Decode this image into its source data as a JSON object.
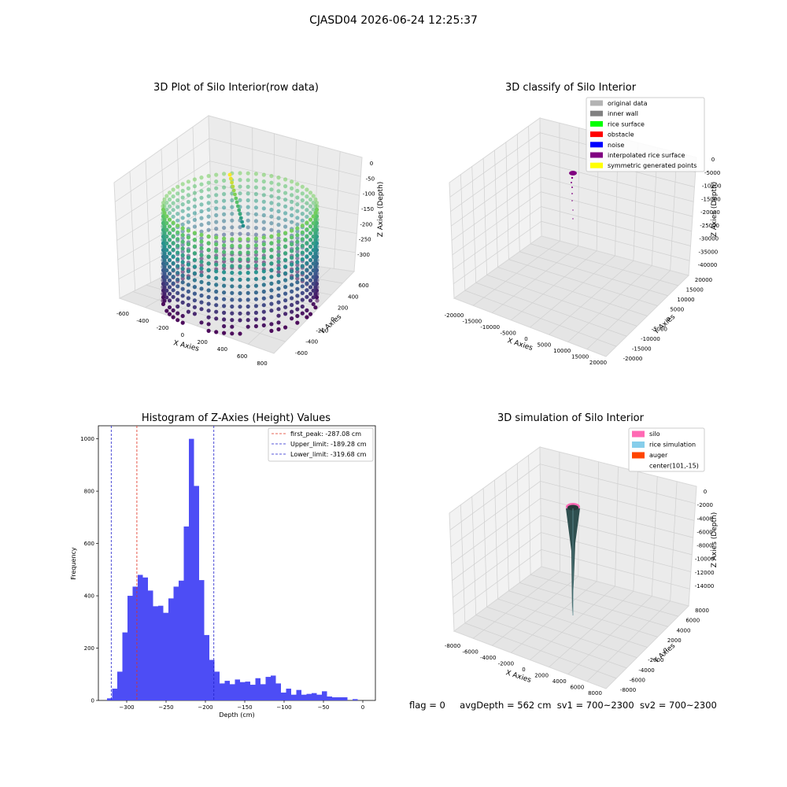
{
  "figure": {
    "suptitle": "CJASD04 2026-06-24 12:25:37",
    "footer": {
      "flag": "flag = 0",
      "avg_depth": "avgDepth = 562 cm",
      "sv1": "sv1 = 700~2300",
      "sv2": "sv2 = 700~2300"
    }
  },
  "colors": {
    "histogram_bar": "#4d4df5",
    "first_peak_line": "#e0301e",
    "limit_line": "#2020cc",
    "silo": "#ff69b4",
    "rice_simulation": "#87ceeb",
    "auger": "#ff4500",
    "original_data": "#b3b3b3",
    "inner_wall": "#808080",
    "rice_surface": "#00ff00",
    "obstacle": "#ff0000",
    "noise": "#0000ff",
    "interpolated_rice_surface": "#800080",
    "symmetric_generated_points": "#ffff00"
  },
  "chart_data": [
    {
      "type": "scatter",
      "title": "3D Plot of Silo Interior(row data)",
      "xlabel": "X Axies",
      "ylabel": "Y Axies",
      "zlabel": "Z Axies (Depth)",
      "x_ticks": [
        "-600",
        "-400",
        "-200",
        "0",
        "200",
        "400",
        "600",
        "800"
      ],
      "y_ticks": [
        "-600",
        "-400",
        "-200",
        "0",
        "200",
        "400",
        "600"
      ],
      "z_ticks": [
        "0",
        "-50",
        "-100",
        "-150",
        "-200",
        "-250",
        "-300"
      ],
      "xlim": [
        -650,
        800
      ],
      "ylim": [
        -650,
        650
      ],
      "zlim": [
        -330,
        0
      ],
      "colormap": "viridis",
      "description_points": "cylindrical wall of points, radius ~550, depths from -330 to 0"
    },
    {
      "type": "scatter",
      "title": "3D classify of Silo Interior",
      "xlabel": "X Axies",
      "ylabel": "Y Axies",
      "zlabel": "Z Axies (Depth)",
      "x_ticks": [
        "-20000",
        "-15000",
        "-10000",
        "-5000",
        "0",
        "5000",
        "10000",
        "15000",
        "20000"
      ],
      "y_ticks": [
        "-20000",
        "-15000",
        "-10000",
        "-5000",
        "0",
        "5000",
        "10000",
        "15000",
        "20000"
      ],
      "z_ticks": [
        "0",
        "-5000",
        "-10000",
        "-15000",
        "-20000",
        "-25000",
        "-30000",
        "-35000",
        "-40000"
      ],
      "xlim": [
        -20000,
        20000
      ],
      "ylim": [
        -20000,
        20000
      ],
      "zlim": [
        -40000,
        0
      ],
      "legend": [
        "original data",
        "inner wall",
        "rice surface",
        "obstacle",
        "noise",
        "interpolated rice surface",
        "symmetric generated points"
      ],
      "legend_location": "top-right"
    },
    {
      "type": "bar",
      "title": "Histogram of Z-Axies (Height) Values",
      "xlabel": "Depth (cm)",
      "ylabel": "Frequency",
      "x_ticks": [
        "-300",
        "-250",
        "-200",
        "-150",
        "-100",
        "-50",
        "0"
      ],
      "y_ticks": [
        "0",
        "200",
        "400",
        "600",
        "800",
        "1000"
      ],
      "xlim": [
        -336,
        16
      ],
      "ylim": [
        0,
        1050
      ],
      "bin_start": -325,
      "bin_width": 6.5,
      "values": [
        8,
        45,
        110,
        260,
        400,
        435,
        480,
        470,
        420,
        360,
        362,
        335,
        390,
        435,
        458,
        665,
        1000,
        820,
        460,
        250,
        155,
        110,
        65,
        75,
        62,
        80,
        70,
        72,
        60,
        85,
        62,
        90,
        95,
        65,
        30,
        45,
        22,
        40,
        22,
        25,
        28,
        22,
        35,
        15,
        12,
        12,
        12,
        0,
        5
      ],
      "vlines": [
        {
          "x": -287.08,
          "style": "first_peak"
        },
        {
          "x": -189.28,
          "style": "limit"
        },
        {
          "x": -319.68,
          "style": "limit"
        }
      ],
      "legend": [
        "first_peak: -287.08 cm",
        "Upper_limit: -189.28 cm",
        "Lower_limit: -319.68 cm"
      ],
      "legend_location": "top-right"
    },
    {
      "type": "area",
      "title": "3D simulation of Silo Interior",
      "xlabel": "X Axies",
      "ylabel": "Y Axies",
      "zlabel": "Z Axies (Depth)",
      "x_ticks": [
        "-8000",
        "-6000",
        "-4000",
        "-2000",
        "0",
        "2000",
        "4000",
        "6000",
        "8000"
      ],
      "y_ticks": [
        "-8000",
        "-6000",
        "-4000",
        "-2000",
        "0",
        "2000",
        "4000",
        "6000",
        "8000"
      ],
      "z_ticks": [
        "0",
        "-2000",
        "-4000",
        "-6000",
        "-8000",
        "-10000",
        "-12000",
        "-14000"
      ],
      "xlim": [
        -8000,
        8000
      ],
      "ylim": [
        -8000,
        8000
      ],
      "zlim": [
        -15000,
        0
      ],
      "legend": [
        "silo",
        "rice simulation",
        "auger",
        "center(101,-15)"
      ],
      "legend_location": "top-right"
    }
  ]
}
